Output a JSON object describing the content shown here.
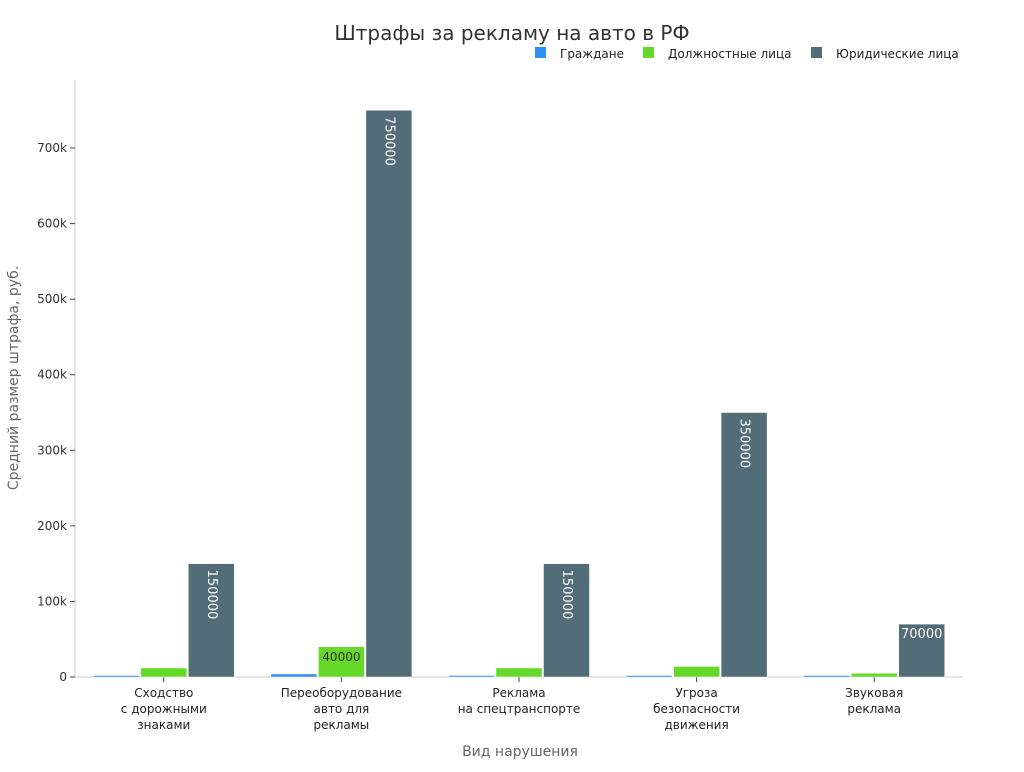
{
  "chart_data": {
    "type": "bar",
    "title": "Штрафы за рекламу на авто в РФ",
    "xlabel": "Вид нарушения",
    "ylabel": "Средний размер штрафа, руб.",
    "ylim": [
      0,
      790000
    ],
    "yticks": [
      0,
      100000,
      200000,
      300000,
      400000,
      500000,
      600000,
      700000
    ],
    "ytick_labels": [
      "0",
      "100k",
      "200k",
      "300k",
      "400k",
      "500k",
      "600k",
      "700k"
    ],
    "legend_position": "top-right",
    "grid": false,
    "categories": [
      [
        "Сходство",
        "с дорожными",
        "знаками"
      ],
      [
        "Переоборудование",
        "авто для",
        "рекламы"
      ],
      [
        "Реклама",
        "на спецтранспорте"
      ],
      [
        "Угроза",
        "безопасности",
        "движения"
      ],
      [
        "Звуковая",
        "реклама"
      ]
    ],
    "series": [
      {
        "name": "Граждане",
        "color": "#2f8ff0",
        "values": [
          2000,
          4000,
          2000,
          2000,
          2000
        ]
      },
      {
        "name": "Должностные лица",
        "color": "#66d82a",
        "values": [
          12000,
          40000,
          12000,
          14000,
          5000
        ]
      },
      {
        "name": "Юридические лица",
        "color": "#536d78",
        "values": [
          150000,
          750000,
          150000,
          350000,
          70000
        ]
      }
    ],
    "data_labels": [
      [
        "",
        "",
        "",
        "",
        ""
      ],
      [
        "",
        "40000",
        "",
        "",
        ""
      ],
      [
        "150000",
        "750000",
        "150000",
        "350000",
        "70000"
      ]
    ]
  }
}
